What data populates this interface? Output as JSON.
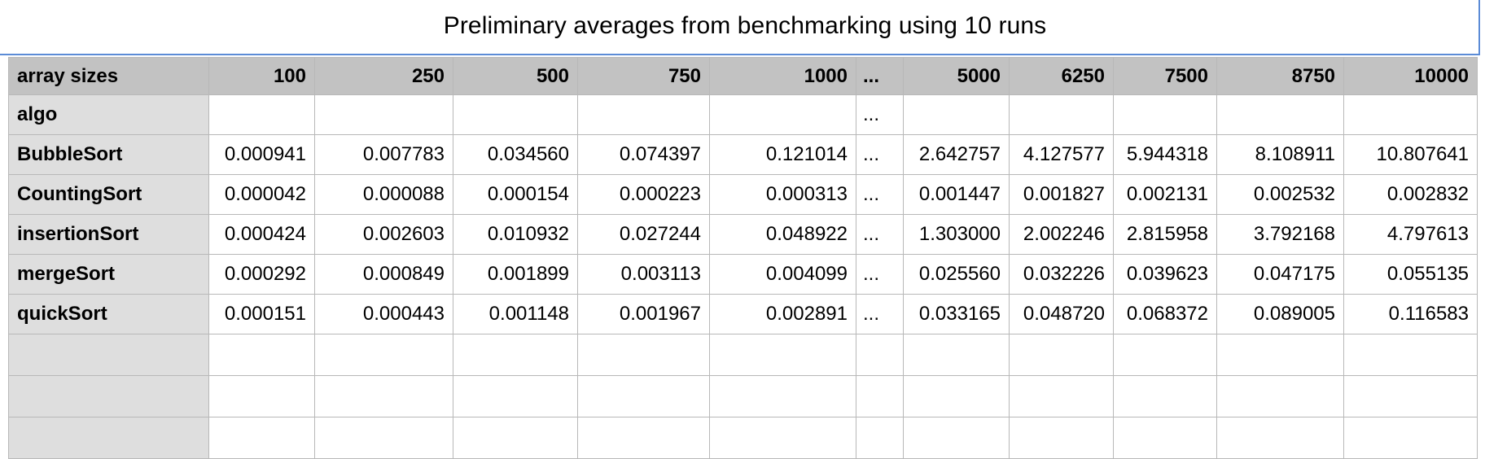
{
  "title": "Preliminary averages from benchmarking using 10 runs",
  "table": {
    "corner_label": "array sizes",
    "columns": [
      "100",
      "250",
      "500",
      "750",
      "1000",
      "...",
      "5000",
      "6250",
      "7500",
      "8750",
      "10000"
    ],
    "rows": [
      {
        "label": "algo",
        "cells": [
          "",
          "",
          "",
          "",
          "",
          "...",
          "",
          "",
          "",
          "",
          ""
        ]
      },
      {
        "label": "BubbleSort",
        "cells": [
          "0.000941",
          "0.007783",
          "0.034560",
          "0.074397",
          "0.121014",
          "...",
          "2.642757",
          "4.127577",
          "5.944318",
          "8.108911",
          "10.807641"
        ]
      },
      {
        "label": "CountingSort",
        "cells": [
          "0.000042",
          "0.000088",
          "0.000154",
          "0.000223",
          "0.000313",
          "...",
          "0.001447",
          "0.001827",
          "0.002131",
          "0.002532",
          "0.002832"
        ]
      },
      {
        "label": "insertionSort",
        "cells": [
          "0.000424",
          "0.002603",
          "0.010932",
          "0.027244",
          "0.048922",
          "...",
          "1.303000",
          "2.002246",
          "2.815958",
          "3.792168",
          "4.797613"
        ]
      },
      {
        "label": "mergeSort",
        "cells": [
          "0.000292",
          "0.000849",
          "0.001899",
          "0.003113",
          "0.004099",
          "...",
          "0.025560",
          "0.032226",
          "0.039623",
          "0.047175",
          "0.055135"
        ]
      },
      {
        "label": "quickSort",
        "cells": [
          "0.000151",
          "0.000443",
          "0.001148",
          "0.001967",
          "0.002891",
          "...",
          "0.033165",
          "0.048720",
          "0.068372",
          "0.089005",
          "0.116583"
        ]
      }
    ],
    "empty_rows": 3
  },
  "colors": {
    "header_bg": "#c2c2c2",
    "label_bg": "#dedede",
    "grid_line": "#b8b8b8",
    "title_border": "#5b8bd6"
  }
}
